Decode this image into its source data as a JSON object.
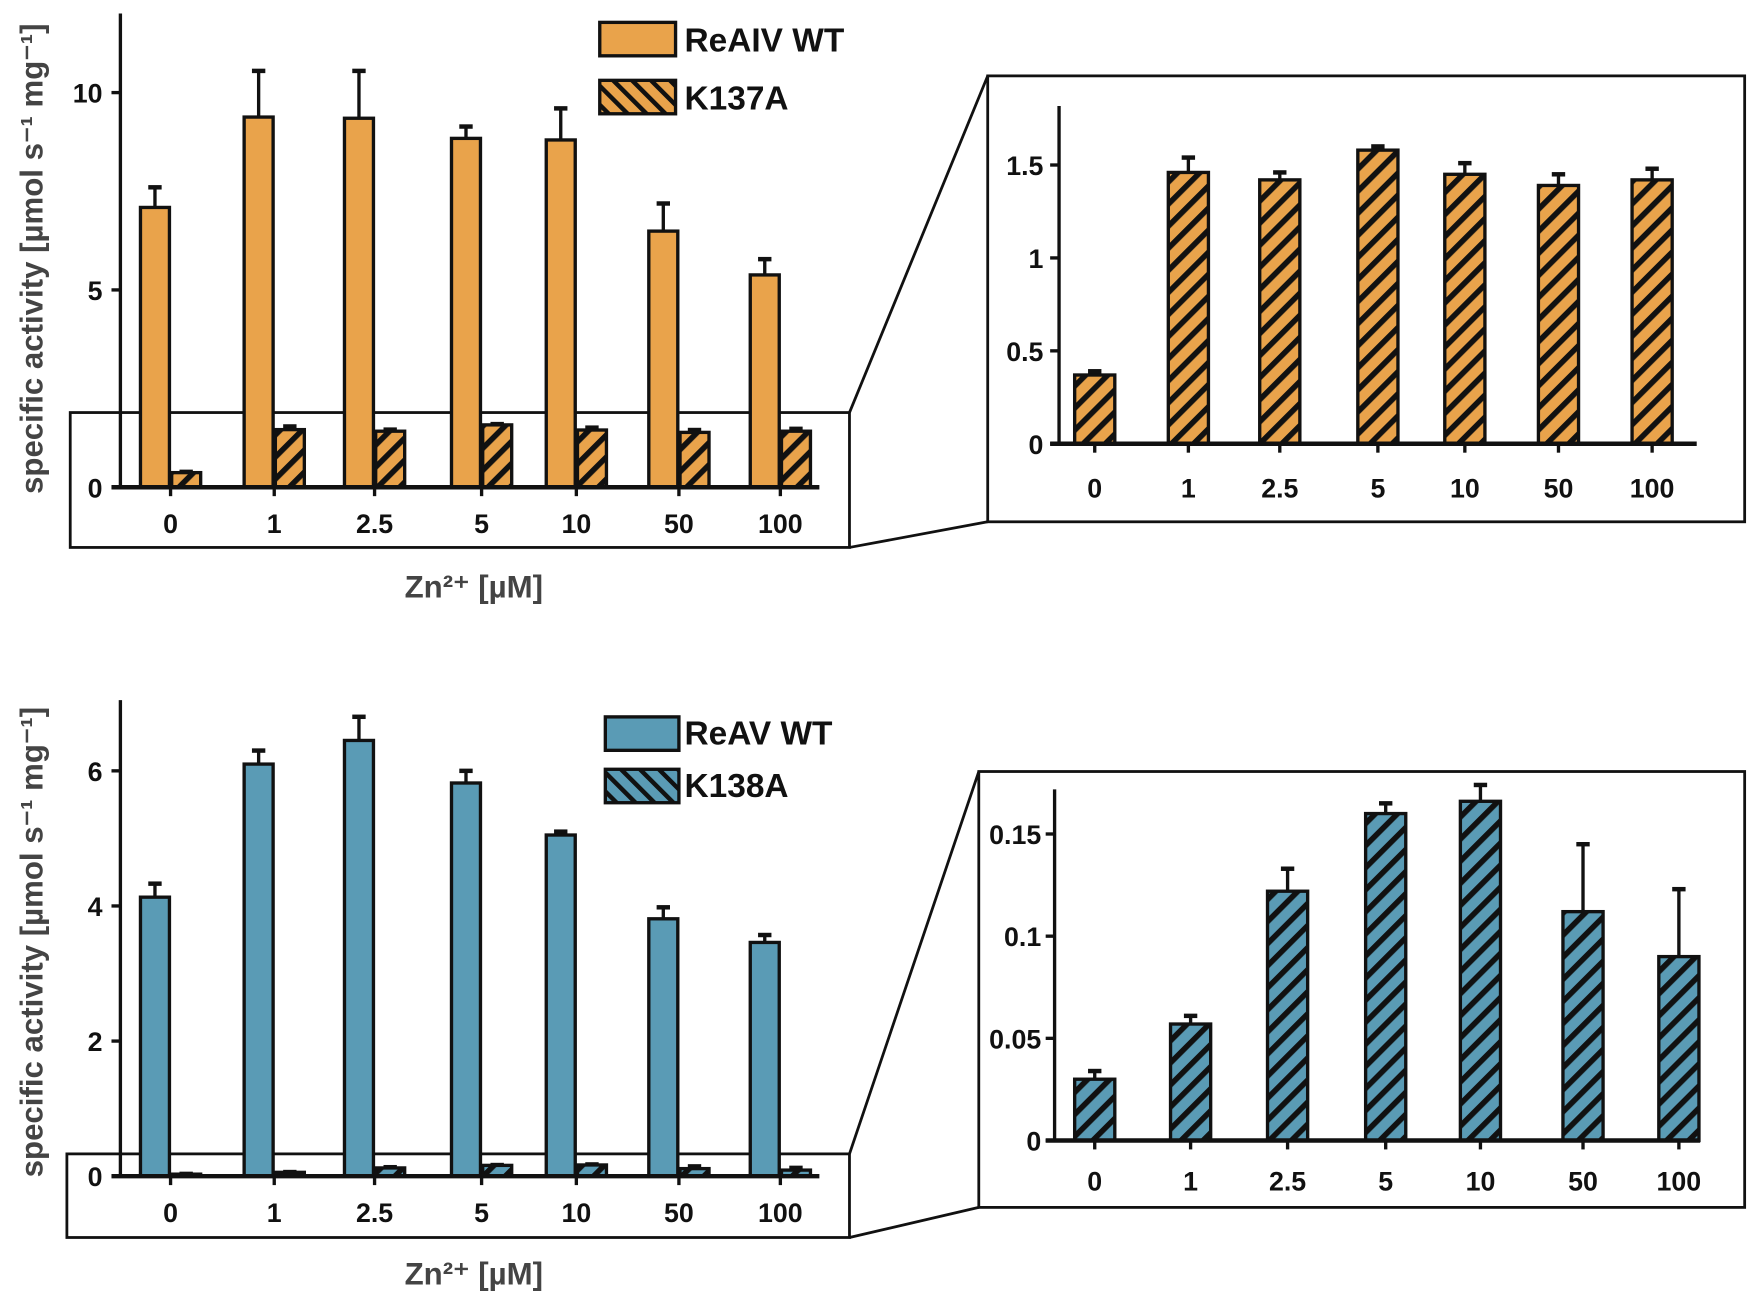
{
  "chart_data": [
    {
      "type": "bar",
      "panel": "top-main",
      "xlabel": "Zn²⁺ [µM]",
      "ylabel": "specific activity [µmol s⁻¹ mg⁻¹]",
      "categories": [
        "0",
        "1",
        "2.5",
        "5",
        "10",
        "50",
        "100"
      ],
      "yticks": [
        "0",
        "5",
        "10"
      ],
      "ylim": [
        0,
        12
      ],
      "legend": {
        "position": "top-right",
        "entries": [
          "ReAIV WT",
          "K137A"
        ]
      },
      "series": [
        {
          "name": "ReAIV WT",
          "color": "#E9A34B",
          "hatched": false,
          "values": [
            7.09,
            9.38,
            9.35,
            8.84,
            8.8,
            6.49,
            5.38
          ],
          "error_upper": [
            7.6,
            10.55,
            10.55,
            9.14,
            9.6,
            7.19,
            5.78
          ]
        },
        {
          "name": "K137A",
          "color": "#E9A34B",
          "hatched": true,
          "values": [
            0.37,
            1.46,
            1.42,
            1.58,
            1.45,
            1.39,
            1.42
          ],
          "error_upper": [
            0.39,
            1.54,
            1.46,
            1.6,
            1.51,
            1.45,
            1.48
          ]
        }
      ]
    },
    {
      "type": "bar",
      "panel": "top-inset",
      "categories": [
        "0",
        "1",
        "2.5",
        "5",
        "10",
        "50",
        "100"
      ],
      "yticks": [
        "0",
        "0.5",
        "1",
        "1.5"
      ],
      "ylim": [
        0,
        1.8
      ],
      "series": [
        {
          "name": "K137A",
          "color": "#E9A34B",
          "hatched": true,
          "values": [
            0.37,
            1.46,
            1.42,
            1.58,
            1.45,
            1.39,
            1.42
          ],
          "error_upper": [
            0.39,
            1.54,
            1.46,
            1.6,
            1.51,
            1.45,
            1.48
          ]
        }
      ]
    },
    {
      "type": "bar",
      "panel": "bottom-main",
      "xlabel": "Zn²⁺ [µM]",
      "ylabel": "specific activity [µmol s⁻¹ mg⁻¹]",
      "categories": [
        "0",
        "1",
        "2.5",
        "5",
        "10",
        "50",
        "100"
      ],
      "yticks": [
        "0",
        "2",
        "4",
        "6"
      ],
      "ylim": [
        0,
        7
      ],
      "legend": {
        "position": "top-right",
        "entries": [
          "ReAV WT",
          "K138A"
        ]
      },
      "series": [
        {
          "name": "ReAV WT",
          "color": "#5A9BB5",
          "hatched": false,
          "values": [
            4.13,
            6.1,
            6.45,
            5.82,
            5.05,
            3.81,
            3.46
          ],
          "error_upper": [
            4.33,
            6.3,
            6.8,
            6.0,
            5.1,
            3.98,
            3.57
          ]
        },
        {
          "name": "K138A",
          "color": "#5A9BB5",
          "hatched": true,
          "values": [
            0.03,
            0.057,
            0.122,
            0.16,
            0.166,
            0.112,
            0.09
          ],
          "error_upper": [
            0.034,
            0.061,
            0.133,
            0.165,
            0.174,
            0.145,
            0.123
          ]
        }
      ]
    },
    {
      "type": "bar",
      "panel": "bottom-inset",
      "categories": [
        "0",
        "1",
        "2.5",
        "5",
        "10",
        "50",
        "100"
      ],
      "yticks": [
        "0",
        "0.05",
        "0.1",
        "0.15"
      ],
      "ylim": [
        0,
        0.172
      ],
      "series": [
        {
          "name": "K138A",
          "color": "#5A9BB5",
          "hatched": true,
          "values": [
            0.03,
            0.057,
            0.122,
            0.16,
            0.166,
            0.112,
            0.09
          ],
          "error_upper": [
            0.034,
            0.061,
            0.133,
            0.165,
            0.174,
            0.145,
            0.123
          ]
        }
      ]
    }
  ]
}
